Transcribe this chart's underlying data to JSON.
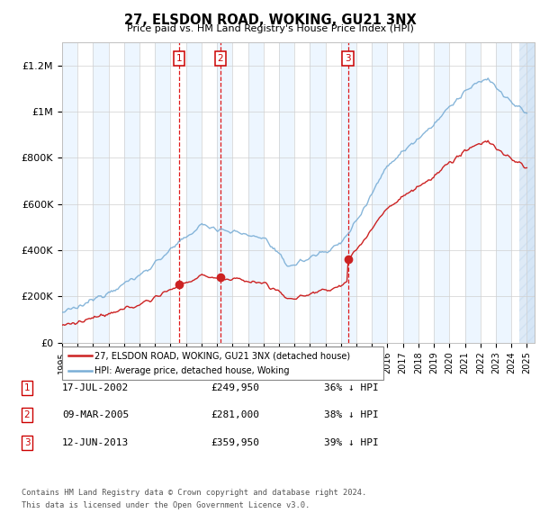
{
  "title": "27, ELSDON ROAD, WOKING, GU21 3NX",
  "subtitle": "Price paid vs. HM Land Registry's House Price Index (HPI)",
  "xlim_start": 1995.0,
  "xlim_end": 2025.5,
  "ylim": [
    0,
    1300000
  ],
  "yticks": [
    0,
    200000,
    400000,
    600000,
    800000,
    1000000,
    1200000
  ],
  "ytick_labels": [
    "£0",
    "£200K",
    "£400K",
    "£600K",
    "£800K",
    "£1M",
    "£1.2M"
  ],
  "transactions": [
    {
      "num": 1,
      "date_label": "17-JUL-2002",
      "price": 249950,
      "price_str": "£249,950",
      "pct": "36% ↓ HPI",
      "x": 2002.54
    },
    {
      "num": 2,
      "date_label": "09-MAR-2005",
      "price": 281000,
      "price_str": "£281,000",
      "pct": "38% ↓ HPI",
      "x": 2005.21
    },
    {
      "num": 3,
      "date_label": "12-JUN-2013",
      "price": 359950,
      "price_str": "£359,950",
      "pct": "39% ↓ HPI",
      "x": 2013.45
    }
  ],
  "legend_line1": "27, ELSDON ROAD, WOKING, GU21 3NX (detached house)",
  "legend_line2": "HPI: Average price, detached house, Woking",
  "footnote1": "Contains HM Land Registry data © Crown copyright and database right 2024.",
  "footnote2": "This data is licensed under the Open Government Licence v3.0.",
  "hpi_color": "#7aaed6",
  "price_color": "#cc2222",
  "bg_stripe_color": "#ddeeff",
  "hatch_color": "#c8dcf0"
}
